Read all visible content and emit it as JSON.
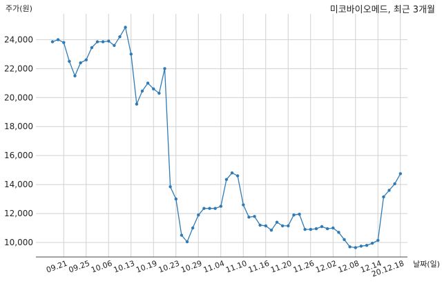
{
  "chart_data": {
    "type": "line",
    "title": "미코바이오메드, 최근 3개월",
    "ylabel": "주가(원)",
    "xlabel": "날짜(일)",
    "ylim": [
      9000,
      25400
    ],
    "grid": true,
    "y_ticks": [
      "10,000",
      "12,000",
      "14,000",
      "16,000",
      "18,000",
      "20,000",
      "22,000",
      "24,000"
    ],
    "y_tick_values": [
      10000,
      12000,
      14000,
      16000,
      18000,
      20000,
      22000,
      24000
    ],
    "x_tick_labels": [
      "09.21",
      "09.25",
      "10.06",
      "10.13",
      "10.19",
      "10.23",
      "10.29",
      "11.04",
      "11.10",
      "11.16",
      "11.20",
      "11.26",
      "12.02",
      "12.08",
      "12.14",
      "20.12.18"
    ],
    "x_tick_index": [
      2,
      6,
      10,
      14,
      18,
      22,
      26,
      30,
      34,
      38,
      42,
      46,
      50,
      54,
      58,
      62
    ],
    "series": [
      {
        "color": "#2e7ab6",
        "values": [
          23850,
          24000,
          23800,
          22500,
          21500,
          22400,
          22600,
          23450,
          23850,
          23850,
          23900,
          23600,
          24200,
          24850,
          23000,
          19550,
          20450,
          21000,
          20600,
          20300,
          22000,
          13850,
          13000,
          10500,
          10050,
          11000,
          11900,
          12350,
          12350,
          12350,
          12500,
          14350,
          14800,
          14600,
          12600,
          11750,
          11800,
          11200,
          11150,
          10850,
          11400,
          11150,
          11150,
          11900,
          11950,
          10900,
          10900,
          10950,
          11100,
          10950,
          11000,
          10700,
          10200,
          9700,
          9650,
          9750,
          9800,
          9950,
          10150,
          13150,
          13600,
          14050,
          14750
        ]
      }
    ]
  }
}
